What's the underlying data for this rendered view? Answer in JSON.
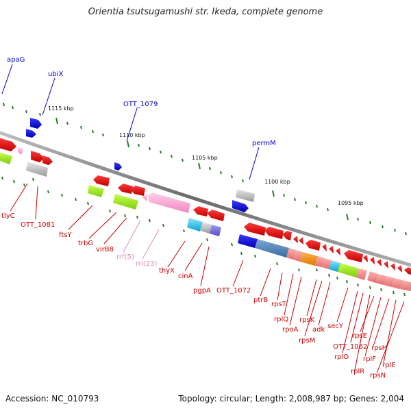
{
  "title": "Orientia tsutsugamushi str. Ikeda, complete genome",
  "footer": {
    "accession": "Accession: NC_010793",
    "summary": "Topology: circular; Length: 2,008,987 bp; Genes: 2,004"
  },
  "ticks": [
    "1115 kbp",
    "1110 kbp",
    "1105 kbp",
    "1100 kbp",
    "1095 kbp"
  ],
  "labels_top": [
    "apaG",
    "ubiX",
    "OTT_1079",
    "permM"
  ],
  "labels_bottom": [
    "tlyC",
    "OTT_1081",
    "ftsY",
    "trbG",
    "virB8",
    "rrf(5)",
    "rrl(23)",
    "thyX",
    "cinA",
    "pgpA",
    "OTT_1072",
    "ptrB",
    "rpsT",
    "rplQ",
    "rpoA",
    "rpsK",
    "rpsM",
    "adk",
    "secY",
    "rpsE",
    "OTT_1062",
    "rplO",
    "rplR",
    "rplF",
    "rpsH",
    "rplE",
    "rpsN"
  ],
  "colors": {
    "backbone": "#8a8a8a",
    "top_label": "#0000cc",
    "bottom_label": "#cc0000",
    "rna_label": "#e08ab8",
    "tick": "#2a7a2a"
  }
}
